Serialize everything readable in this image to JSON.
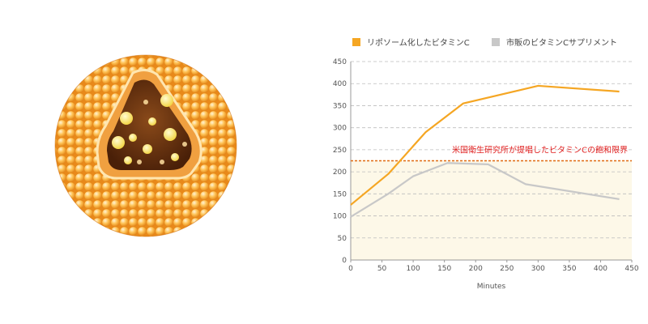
{
  "chart_data": {
    "type": "line",
    "xlabel": "Minutes",
    "ylabel": "",
    "xlim": [
      0,
      450
    ],
    "ylim": [
      0,
      450
    ],
    "xticks": [
      "0",
      "50",
      "100",
      "150",
      "200",
      "250",
      "300",
      "350",
      "400",
      "450"
    ],
    "yticks": [
      "0",
      "50",
      "100",
      "150",
      "200",
      "250",
      "300",
      "350",
      "400",
      "450"
    ],
    "grid": "horizontal dashed",
    "legend_position": "top",
    "series": [
      {
        "name": "リポソーム化したビタミンC",
        "color": "#f5a623",
        "x": [
          0,
          60,
          120,
          180,
          300,
          430
        ],
        "y": [
          125,
          195,
          290,
          355,
          395,
          382
        ]
      },
      {
        "name": "市販のビタミンCサプリメント",
        "color": "#c8c8c8",
        "x": [
          0,
          60,
          100,
          155,
          220,
          280,
          430
        ],
        "y": [
          98,
          150,
          190,
          220,
          217,
          172,
          138
        ]
      }
    ],
    "annotation": {
      "text": "米国衛生研究所が提唱したビタミンCの飽和限界",
      "y": 225,
      "color": "#e02020",
      "line_color": "#e06a10"
    }
  }
}
